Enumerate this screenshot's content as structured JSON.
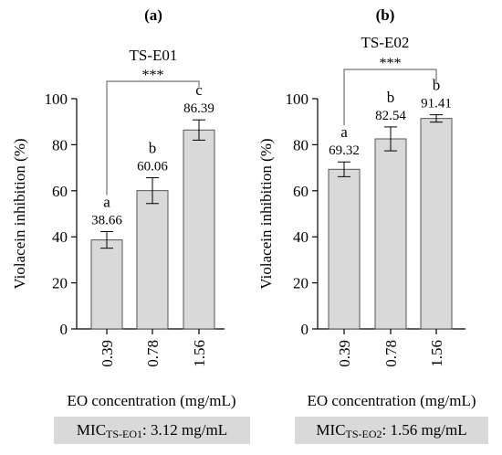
{
  "chart_data": [
    {
      "type": "bar",
      "panel_label": "(a)",
      "title": "TS-E01",
      "ylabel": "Violacein inhibition (%)",
      "xlabel": "EO concentration (mg/mL)",
      "ylim": [
        0,
        100
      ],
      "yticks": [
        "0",
        "20",
        "40",
        "60",
        "80",
        "100"
      ],
      "categories": [
        "0.39",
        "0.78",
        "1.56"
      ],
      "values": [
        38.66,
        60.06,
        86.39
      ],
      "errors": [
        3.6,
        5.6,
        4.4
      ],
      "value_labels": [
        "38.66",
        "60.06",
        "86.39"
      ],
      "letters": [
        "a",
        "b",
        "c"
      ],
      "significance": {
        "from": "0.39",
        "to": "1.56",
        "label": "***"
      },
      "mic": {
        "prefix": "MIC",
        "sub": "TS-EO1",
        "value": ": 3.12 mg/mL"
      },
      "bar_color": "#d9d9d9"
    },
    {
      "type": "bar",
      "panel_label": "(b)",
      "title": "TS-E02",
      "ylabel": "Violacein inhibition (%)",
      "xlabel": "EO concentration (mg/mL)",
      "ylim": [
        0,
        100
      ],
      "yticks": [
        "0",
        "20",
        "40",
        "60",
        "80",
        "100"
      ],
      "categories": [
        "0.39",
        "0.78",
        "1.56"
      ],
      "values": [
        69.32,
        82.54,
        91.41
      ],
      "errors": [
        3.2,
        5.2,
        1.6
      ],
      "value_labels": [
        "69.32",
        "82.54",
        "91.41"
      ],
      "letters": [
        "a",
        "b",
        "b"
      ],
      "significance": {
        "from": "0.39",
        "to": "1.56",
        "label": "***"
      },
      "mic": {
        "prefix": "MIC",
        "sub": "TS-EO2",
        "value": ": 1.56 mg/mL"
      },
      "bar_color": "#d9d9d9"
    }
  ]
}
